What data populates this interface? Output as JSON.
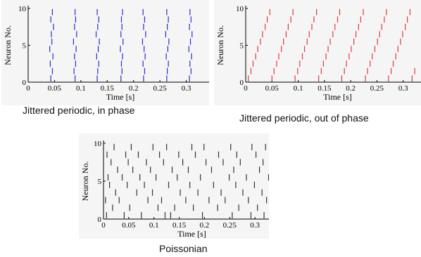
{
  "chart_data": [
    {
      "type": "raster",
      "caption": "Jittered periodic, in phase",
      "xlabel": "Time [s]",
      "ylabel": "Neuron No.",
      "xlim": [
        0,
        0.35
      ],
      "ylim": [
        0,
        10
      ],
      "xticks": [
        0,
        0.05,
        0.1,
        0.15,
        0.2,
        0.25,
        0.3
      ],
      "xtick_labels": [
        "0",
        "0.05",
        "0.1",
        "0.15",
        "0.2",
        "0.25",
        "0.3"
      ],
      "yticks": [
        0,
        5,
        10
      ],
      "ytick_labels": [
        "0",
        "5",
        "10"
      ],
      "color": "#2b2bd6",
      "spikes": [
        [
          0.043,
          0.089,
          0.131,
          0.176,
          0.219,
          0.263,
          0.306
        ],
        [
          0.046,
          0.087,
          0.132,
          0.178,
          0.221,
          0.264,
          0.309
        ],
        [
          0.042,
          0.09,
          0.134,
          0.177,
          0.218,
          0.266,
          0.307
        ],
        [
          0.047,
          0.088,
          0.13,
          0.179,
          0.222,
          0.262,
          0.31
        ],
        [
          0.041,
          0.091,
          0.133,
          0.175,
          0.22,
          0.265,
          0.305
        ],
        [
          0.045,
          0.086,
          0.135,
          0.18,
          0.217,
          0.267,
          0.308
        ],
        [
          0.044,
          0.092,
          0.129,
          0.176,
          0.223,
          0.261,
          0.311
        ],
        [
          0.048,
          0.088,
          0.132,
          0.178,
          0.219,
          0.264,
          0.306
        ],
        [
          0.043,
          0.09,
          0.134,
          0.177,
          0.221,
          0.266,
          0.309
        ],
        [
          0.046,
          0.089,
          0.131,
          0.179,
          0.218,
          0.263,
          0.307
        ]
      ]
    },
    {
      "type": "raster",
      "caption": "Jittered periodic, out of phase",
      "xlabel": "Time [s]",
      "ylabel": "Neuron No.",
      "xlim": [
        0,
        0.35
      ],
      "ylim": [
        0,
        10
      ],
      "xticks": [
        0,
        0.05,
        0.1,
        0.15,
        0.2,
        0.25,
        0.3
      ],
      "xtick_labels": [
        "0",
        "0.05",
        "0.1",
        "0.15",
        "0.2",
        "0.25",
        "0.3"
      ],
      "yticks": [
        0,
        5,
        10
      ],
      "ytick_labels": [
        "0",
        "5",
        "10"
      ],
      "color": "#e03a3a",
      "spikes": [
        [
          0.005,
          0.05,
          0.094,
          0.139,
          0.183,
          0.228,
          0.272,
          0.317
        ],
        [
          0.01,
          0.054,
          0.099,
          0.144,
          0.188,
          0.232,
          0.277,
          0.322
        ],
        [
          0.014,
          0.059,
          0.103,
          0.148,
          0.192,
          0.237,
          0.281
        ],
        [
          0.019,
          0.063,
          0.108,
          0.153,
          0.197,
          0.241,
          0.286
        ],
        [
          0.023,
          0.068,
          0.112,
          0.157,
          0.201,
          0.246,
          0.29
        ],
        [
          0.028,
          0.072,
          0.117,
          0.161,
          0.206,
          0.251,
          0.295
        ],
        [
          0.032,
          0.077,
          0.121,
          0.166,
          0.21,
          0.255,
          0.299
        ],
        [
          0.037,
          0.081,
          0.126,
          0.17,
          0.215,
          0.259,
          0.304
        ],
        [
          0.041,
          0.086,
          0.13,
          0.175,
          0.219,
          0.264,
          0.308
        ],
        [
          0.046,
          0.09,
          0.135,
          0.179,
          0.224,
          0.268,
          0.313
        ]
      ]
    },
    {
      "type": "raster",
      "caption": "Poissonian",
      "xlabel": "Time [s]",
      "ylabel": "Neuron No.",
      "xlim": [
        0,
        0.35
      ],
      "ylim": [
        0,
        10
      ],
      "xticks": [
        0,
        0.05,
        0.1,
        0.15,
        0.2,
        0.25,
        0.3
      ],
      "xtick_labels": [
        "0",
        "0.05",
        "0.1",
        "0.15",
        "0.2",
        "0.25",
        "0.3"
      ],
      "yticks": [
        0,
        5,
        10
      ],
      "ytick_labels": [
        "0",
        "5",
        "10"
      ],
      "color": "#333333",
      "spikes": [
        [
          0.006,
          0.041,
          0.075,
          0.122,
          0.133,
          0.196,
          0.255,
          0.292,
          0.318
        ],
        [
          0.018,
          0.052,
          0.108,
          0.141,
          0.178,
          0.226,
          0.268,
          0.305,
          0.331
        ],
        [
          0.004,
          0.031,
          0.088,
          0.115,
          0.163,
          0.209,
          0.241,
          0.287,
          0.323
        ],
        [
          0.024,
          0.066,
          0.097,
          0.152,
          0.187,
          0.233,
          0.276,
          0.314
        ],
        [
          0.012,
          0.047,
          0.081,
          0.129,
          0.171,
          0.218,
          0.262,
          0.299,
          0.336
        ],
        [
          0.009,
          0.037,
          0.072,
          0.104,
          0.146,
          0.192,
          0.249,
          0.283,
          0.327
        ],
        [
          0.028,
          0.058,
          0.093,
          0.136,
          0.168,
          0.214,
          0.258,
          0.309
        ],
        [
          0.015,
          0.049,
          0.085,
          0.119,
          0.157,
          0.203,
          0.237,
          0.271,
          0.316,
          0.339
        ],
        [
          0.007,
          0.044,
          0.069,
          0.111,
          0.149,
          0.182,
          0.228,
          0.264,
          0.302,
          0.329
        ],
        [
          0.021,
          0.055,
          0.098,
          0.125,
          0.175,
          0.199,
          0.252,
          0.294,
          0.321,
          0.342
        ]
      ]
    }
  ]
}
